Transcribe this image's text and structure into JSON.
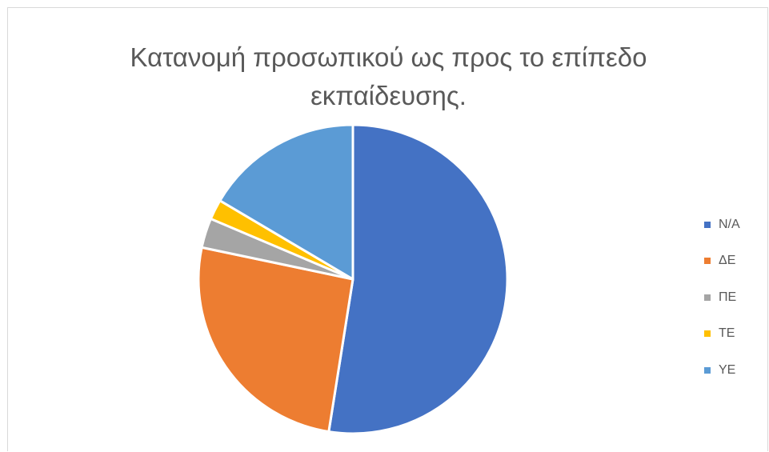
{
  "chart_data": {
    "type": "pie",
    "title_line1": "Κατανομή προσωπικού ως προς το επίπεδο",
    "title_line2": "εκπαίδευσης.",
    "categories": [
      "N/A",
      "ΔΕ",
      "ΠΕ",
      "ΤΕ",
      "ΥΕ"
    ],
    "values": [
      52.5,
      25.8,
      3.1,
      2.1,
      16.5
    ],
    "colors": [
      "#4472c4",
      "#ed7d31",
      "#a5a5a5",
      "#ffc000",
      "#5b9bd5"
    ],
    "legend_position": "right",
    "start_angle_deg": 0,
    "direction": "clockwise"
  }
}
